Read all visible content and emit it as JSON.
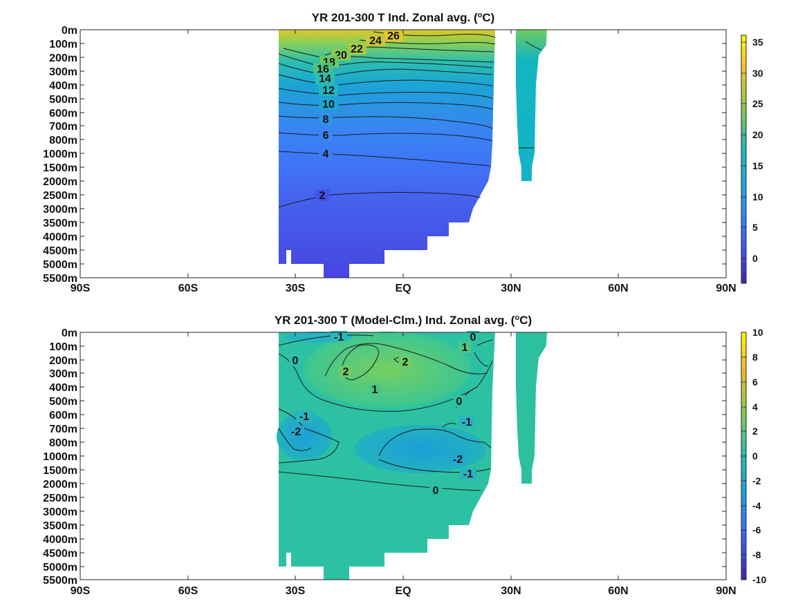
{
  "chart_data": [
    {
      "type": "heatmap",
      "title_main": "YR 201-300 T Ind. Zonal avg. (",
      "title_sup": "o",
      "title_end": "C)",
      "x_ticks": [
        "90S",
        "60S",
        "30S",
        "EQ",
        "30N",
        "60N",
        "90N"
      ],
      "y_ticks": [
        "0m",
        "100m",
        "200m",
        "300m",
        "400m",
        "500m",
        "600m",
        "700m",
        "800m",
        "1000m",
        "1500m",
        "2000m",
        "2500m",
        "3000m",
        "3500m",
        "4000m",
        "4500m",
        "5000m",
        "5500m"
      ],
      "colorbar": {
        "ticks": [
          "35",
          "30",
          "25",
          "20",
          "15",
          "10",
          "5",
          "0"
        ],
        "range": [
          -4,
          36
        ]
      },
      "contour_labels": [
        "26",
        "24",
        "22",
        "20",
        "18",
        "16",
        "14",
        "12",
        "10",
        "8",
        "6",
        "4",
        "2"
      ],
      "contour_levels": [
        2,
        4,
        6,
        8,
        10,
        12,
        14,
        16,
        18,
        20,
        22,
        24,
        26
      ],
      "colors": {
        "low": "#3d26a8",
        "mid1": "#3e7bfa",
        "mid2": "#14b9c4",
        "mid3": "#7fcd5c",
        "high": "#f8d626"
      }
    },
    {
      "type": "heatmap",
      "title_main": "YR 201-300 T (Model-Clm.) Ind. Zonal avg. (",
      "title_sup": "o",
      "title_end": "C)",
      "x_ticks": [
        "90S",
        "60S",
        "30S",
        "EQ",
        "30N",
        "60N",
        "90N"
      ],
      "y_ticks": [
        "0m",
        "100m",
        "200m",
        "300m",
        "400m",
        "500m",
        "600m",
        "700m",
        "800m",
        "1000m",
        "1500m",
        "2000m",
        "2500m",
        "3000m",
        "3500m",
        "4000m",
        "4500m",
        "5000m",
        "5500m"
      ],
      "colorbar": {
        "ticks": [
          "10",
          "8",
          "6",
          "4",
          "2",
          "0",
          "-2",
          "-4",
          "-6",
          "-8",
          "-10"
        ],
        "range": [
          -10,
          10
        ]
      },
      "contour_labels": [
        "-1",
        "0",
        "1",
        "2",
        "2",
        "0",
        "1",
        "0",
        "-1",
        "-2",
        "-1",
        "-2",
        "-1",
        "0"
      ],
      "contour_levels": [
        -2,
        -1,
        0,
        1,
        2
      ],
      "colors": {
        "background": "#2cc0a5",
        "warm": "#63cc6a",
        "cool": "#1f9fd8"
      }
    }
  ]
}
